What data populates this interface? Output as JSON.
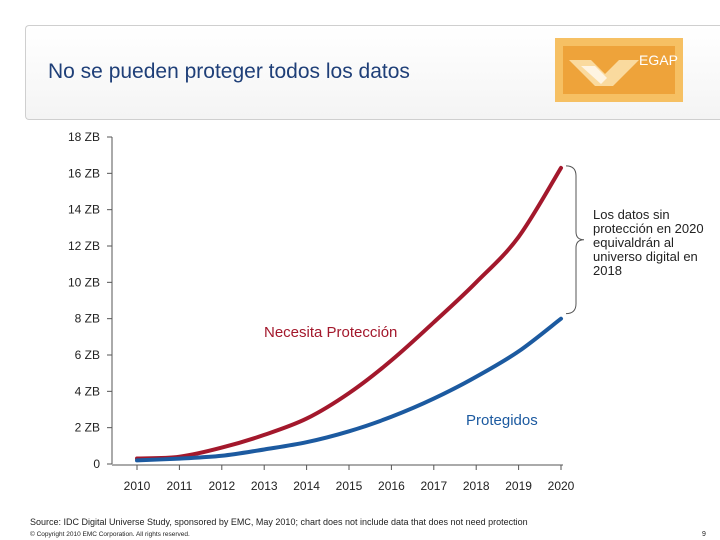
{
  "slide": {
    "title": "No se pueden proteger todos los datos",
    "logo_text": "EGAP",
    "source": "Source: IDC Digital Universe Study, sponsored by EMC, May 2010; chart does not include data that does not need protection",
    "copyright": "© Copyright 2010 EMC Corporation. All rights reserved.",
    "page_number": "9",
    "annotation": "Los datos sin protección en 2020 equivaldrán al universo digital en 2018"
  },
  "chart_data": {
    "type": "line",
    "title": "",
    "xlabel": "",
    "ylabel": "",
    "x": [
      2010,
      2011,
      2012,
      2013,
      2014,
      2015,
      2016,
      2017,
      2018,
      2019,
      2020
    ],
    "x_tick_labels": [
      "2010",
      "2011",
      "2012",
      "2013",
      "2014",
      "2015",
      "2016",
      "2017",
      "2018",
      "2019",
      "2020"
    ],
    "y_tick_values": [
      0,
      2,
      4,
      6,
      8,
      10,
      12,
      14,
      16,
      18
    ],
    "y_tick_labels": [
      "0",
      "2 ZB",
      "4 ZB",
      "6 ZB",
      "8 ZB",
      "10 ZB",
      "12 ZB",
      "14 ZB",
      "16 ZB",
      "18 ZB"
    ],
    "ylim": [
      0,
      18
    ],
    "grid": false,
    "series": [
      {
        "name": "Necesita Protección",
        "color": "#a3182c",
        "values": [
          0.3,
          0.4,
          0.9,
          1.6,
          2.5,
          3.9,
          5.7,
          7.8,
          10.0,
          12.5,
          16.3
        ]
      },
      {
        "name": "Protegidos",
        "color": "#1c5aa0",
        "values": [
          0.2,
          0.3,
          0.45,
          0.8,
          1.2,
          1.8,
          2.6,
          3.6,
          4.8,
          6.2,
          8.0
        ]
      }
    ]
  },
  "colors": {
    "title": "#1f3f78",
    "logo_bg": "#f0a830"
  }
}
